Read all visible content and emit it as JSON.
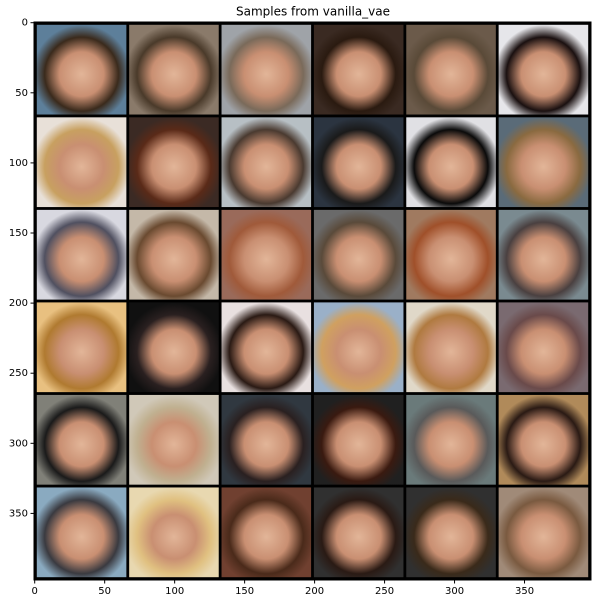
{
  "chart_data": {
    "type": "image",
    "title": "Samples from vanilla_vae",
    "xlim": [
      -0.5,
      397.5
    ],
    "ylim": [
      397.5,
      -0.5
    ],
    "xticks": [
      0,
      50,
      100,
      150,
      200,
      250,
      300,
      350
    ],
    "yticks": [
      0,
      50,
      100,
      150,
      200,
      250,
      300,
      350
    ]
  }
}
